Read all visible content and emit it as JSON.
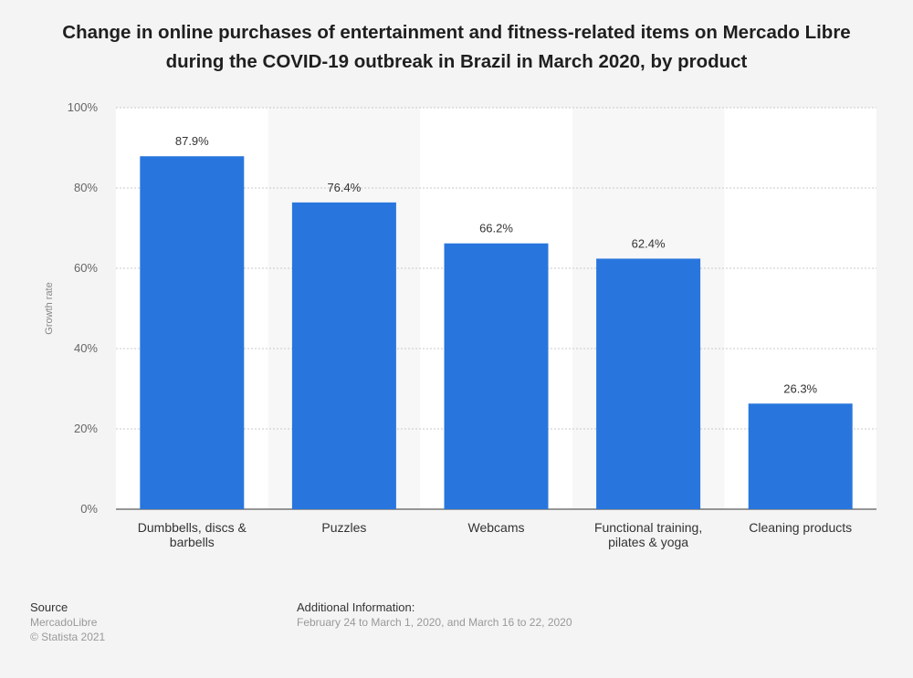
{
  "chart_data": {
    "type": "bar",
    "title": "Change in online purchases of entertainment and fitness-related items on Mercado Libre during the COVID-19 outbreak in Brazil in March 2020, by product",
    "categories": [
      [
        "Dumbbells, discs &",
        "barbells"
      ],
      [
        "Puzzles"
      ],
      [
        "Webcams"
      ],
      [
        "Functional training,",
        "pilates & yoga"
      ],
      [
        "Cleaning products"
      ]
    ],
    "values": [
      87.9,
      76.4,
      66.2,
      62.4,
      26.3
    ],
    "data_labels": [
      "87.9%",
      "76.4%",
      "66.2%",
      "62.4%",
      "26.3%"
    ],
    "ylabel": "Growth rate",
    "ylim": [
      0,
      100
    ],
    "yticks": [
      0,
      20,
      40,
      60,
      80,
      100
    ],
    "ytick_labels": [
      "0%",
      "20%",
      "40%",
      "60%",
      "80%",
      "100%"
    ],
    "bar_color": "#2876dd",
    "grid": true
  },
  "footer": {
    "source_heading": "Source",
    "source_name": "MercadoLibre",
    "copyright": "© Statista 2021",
    "additional_heading": "Additional Information:",
    "additional_text": "February 24 to March 1, 2020, and March 16 to 22, 2020"
  }
}
